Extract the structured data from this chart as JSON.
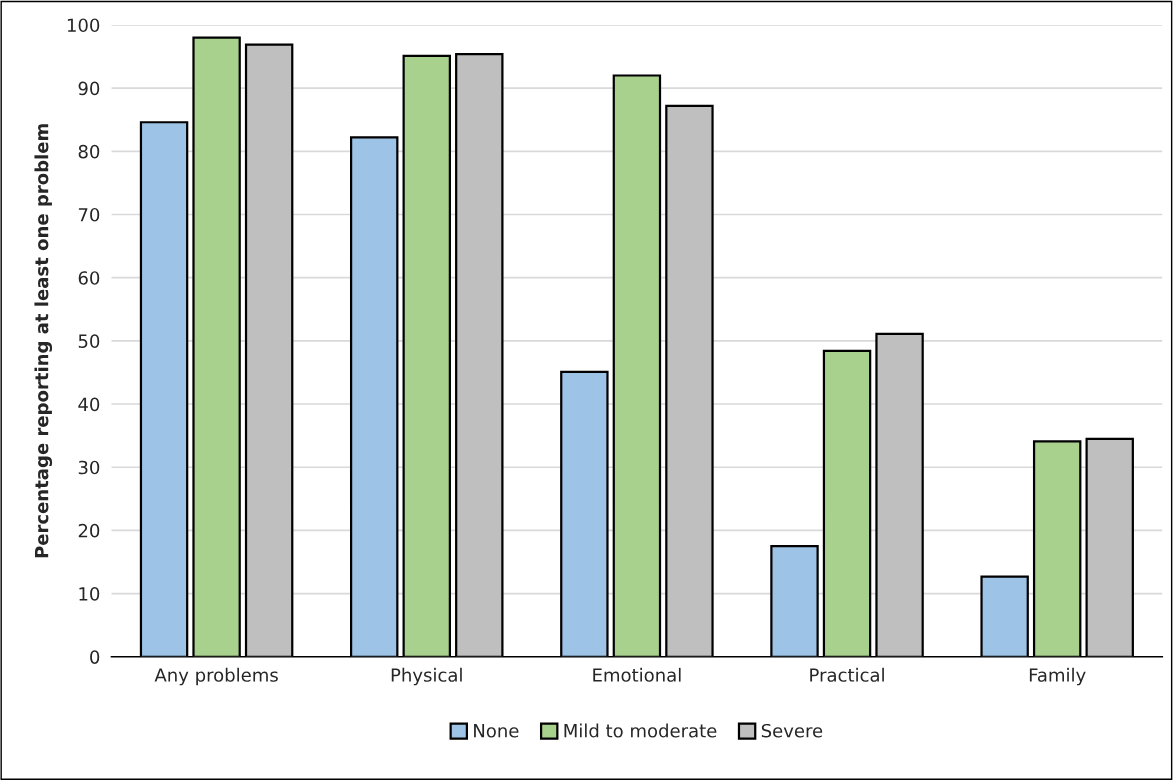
{
  "chart_data": {
    "type": "bar",
    "ylabel": "Percentage reporting at least one problem",
    "categories": [
      "Any problems",
      "Physical",
      "Emotional",
      "Practical",
      "Family"
    ],
    "series": [
      {
        "name": "None",
        "color": "#9dc3e6",
        "values": [
          84.6,
          82.2,
          45.1,
          17.5,
          12.7
        ]
      },
      {
        "name": "Mild to moderate",
        "color": "#a9d18e",
        "values": [
          98.0,
          95.1,
          92.0,
          48.4,
          34.1
        ]
      },
      {
        "name": "Severe",
        "color": "#bfbfbf",
        "values": [
          96.9,
          95.4,
          87.2,
          51.1,
          34.5
        ]
      }
    ],
    "ylim": [
      0,
      100
    ],
    "yticks": [
      0,
      10,
      20,
      30,
      40,
      50,
      60,
      70,
      80,
      90,
      100
    ],
    "grid": "y",
    "legend": "bottom"
  }
}
